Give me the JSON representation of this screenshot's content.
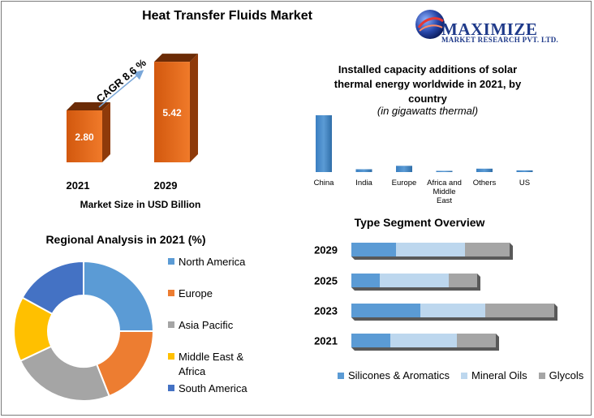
{
  "title": "Heat Transfer Fluids Market",
  "brand": {
    "name": "MAXIMIZE",
    "tagline": "MARKET RESEARCH PVT. LTD."
  },
  "colors": {
    "blue": "#5b9bd5",
    "orange": "#ed7d31",
    "gray": "#a5a5a5",
    "yellow": "#ffc000",
    "darkblue": "#4472c4",
    "lightblue": "#bdd7ee"
  },
  "chart_data": [
    {
      "type": "bar",
      "categories": [
        "2021",
        "2029"
      ],
      "values": [
        2.8,
        5.42
      ],
      "value_labels": [
        "2.80",
        "5.42"
      ],
      "annotation": "CAGR 8.6 %",
      "xlabel": "Market Size in USD Billion"
    },
    {
      "type": "bar",
      "title": "Installed capacity additions of solar thermal energy worldwide in 2021, by country",
      "subtitle": "(in gigawatts thermal)",
      "categories": [
        "China",
        "India",
        "Europe",
        "Africa and Middle East",
        "Others",
        "US"
      ],
      "values": [
        100,
        5,
        11,
        2,
        6,
        3
      ]
    },
    {
      "type": "pie",
      "title": "Regional Analysis in 2021 (%)",
      "labels": [
        "North America",
        "Europe",
        "Asia Pacific",
        "Middle East & Africa",
        "South America"
      ],
      "values": [
        25,
        19,
        24,
        15,
        17
      ]
    },
    {
      "type": "bar",
      "title": "Type Segment Overview",
      "categories": [
        "2029",
        "2025",
        "2023",
        "2021"
      ],
      "series": [
        {
          "name": "Silicones & Aromatics",
          "values": [
            55,
            35,
            85,
            48
          ]
        },
        {
          "name": "Mineral Oils",
          "values": [
            85,
            85,
            80,
            82
          ]
        },
        {
          "name": "Glycols",
          "values": [
            55,
            35,
            85,
            48
          ]
        }
      ]
    }
  ]
}
